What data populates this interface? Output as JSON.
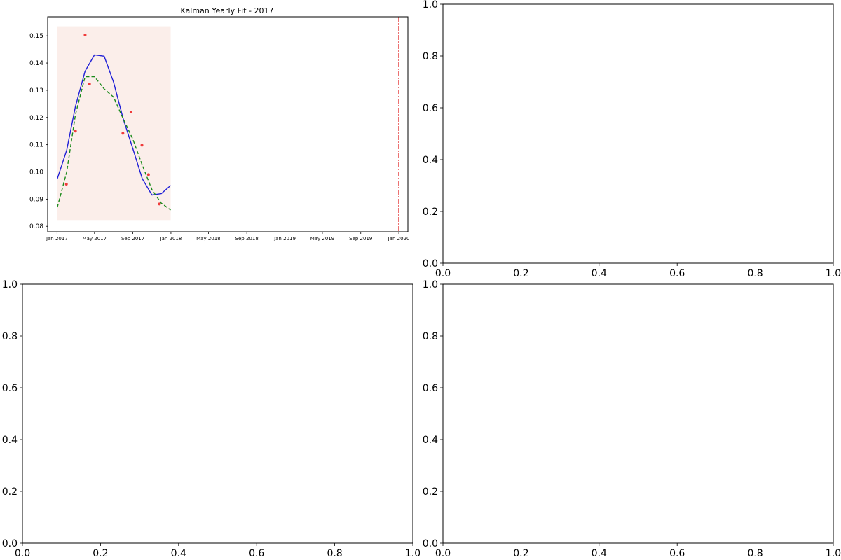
{
  "chart_data": [
    {
      "type": "line",
      "title": "Kalman Yearly Fit - 2017",
      "xlabel": "",
      "ylabel": "",
      "x_axis": "date",
      "xlim": [
        "2016-12-02",
        "2020-01-30"
      ],
      "ylim": [
        0.078,
        0.157
      ],
      "x_ticks": [
        "2017-01-01",
        "2017-05-01",
        "2017-09-01",
        "2018-01-01",
        "2018-05-01",
        "2018-09-01",
        "2019-01-01",
        "2019-05-01",
        "2019-09-01",
        "2020-01-01"
      ],
      "x_tick_labels": [
        "Jan 2017",
        "May 2017",
        "Sep 2017",
        "Jan 2018",
        "May 2018",
        "Sep 2018",
        "Jan 2019",
        "May 2019",
        "Sep 2019",
        "Jan 2020"
      ],
      "y_ticks": [
        0.08,
        0.09,
        0.1,
        0.11,
        0.12,
        0.13,
        0.14,
        0.15
      ],
      "y_tick_labels": [
        "0.08",
        "0.09",
        "0.10",
        "0.11",
        "0.12",
        "0.13",
        "0.14",
        "0.15"
      ],
      "grid": false,
      "colors": {
        "fit_line": "#1f1fd6",
        "kalman_line": "#1a8a1a",
        "observations": "#ef3b3b",
        "span": "#fbeeea",
        "vline": "#e01b1b"
      },
      "shaded_span": {
        "x": [
          "2017-01-02",
          "2017-12-31"
        ],
        "y": [
          0.0823,
          0.1535
        ]
      },
      "vertical_line": {
        "x": "2020-01-01",
        "style": "dash-dot"
      },
      "series": [
        {
          "kind": "line",
          "style": "solid",
          "color": "#1f1fd6",
          "x": [
            "2017-01-02",
            "2017-02-01",
            "2017-03-01",
            "2017-04-01",
            "2017-05-01",
            "2017-06-01",
            "2017-07-01",
            "2017-08-01",
            "2017-09-01",
            "2017-10-01",
            "2017-11-01",
            "2017-12-01",
            "2017-12-31"
          ],
          "y": [
            0.0975,
            0.108,
            0.124,
            0.137,
            0.143,
            0.1425,
            0.133,
            0.1195,
            0.1085,
            0.0975,
            0.0915,
            0.092,
            0.095
          ]
        },
        {
          "kind": "line",
          "style": "dashed",
          "color": "#1a8a1a",
          "x": [
            "2017-01-02",
            "2017-02-01",
            "2017-03-01",
            "2017-04-01",
            "2017-05-01",
            "2017-06-01",
            "2017-07-01",
            "2017-08-01",
            "2017-09-01",
            "2017-10-01",
            "2017-11-01",
            "2017-12-01",
            "2017-12-31"
          ],
          "y": [
            0.087,
            0.1,
            0.121,
            0.135,
            0.135,
            0.1305,
            0.1275,
            0.1195,
            0.112,
            0.1025,
            0.0935,
            0.0885,
            0.086
          ]
        },
        {
          "kind": "scatter",
          "color": "#ef3b3b",
          "x": [
            "2017-01-31",
            "2017-03-01",
            "2017-04-01",
            "2017-04-15",
            "2017-07-31",
            "2017-08-26",
            "2017-09-30",
            "2017-10-21",
            "2017-11-25"
          ],
          "y": [
            0.0955,
            0.115,
            0.1503,
            0.1323,
            0.1142,
            0.122,
            0.1098,
            0.099,
            0.0882
          ]
        }
      ]
    },
    {
      "type": "line",
      "title": "",
      "xlim": [
        0,
        1
      ],
      "ylim": [
        0,
        1
      ],
      "x_ticks": [
        0,
        0.2,
        0.4,
        0.6,
        0.8,
        1.0
      ],
      "x_tick_labels": [
        "0.0",
        "0.2",
        "0.4",
        "0.6",
        "0.8",
        "1.0"
      ],
      "y_ticks": [
        0,
        0.2,
        0.4,
        0.6,
        0.8,
        1.0
      ],
      "y_tick_labels": [
        "0.0",
        "0.2",
        "0.4",
        "0.6",
        "0.8",
        "1.0"
      ],
      "series": []
    },
    {
      "type": "line",
      "title": "",
      "xlim": [
        0,
        1
      ],
      "ylim": [
        0,
        1
      ],
      "x_ticks": [
        0,
        0.2,
        0.4,
        0.6,
        0.8,
        1.0
      ],
      "x_tick_labels": [
        "0.0",
        "0.2",
        "0.4",
        "0.6",
        "0.8",
        "1.0"
      ],
      "y_ticks": [
        0,
        0.2,
        0.4,
        0.6,
        0.8,
        1.0
      ],
      "y_tick_labels": [
        "0.0",
        "0.2",
        "0.4",
        "0.6",
        "0.8",
        "1.0"
      ],
      "series": []
    },
    {
      "type": "line",
      "title": "",
      "xlim": [
        0,
        1
      ],
      "ylim": [
        0,
        1
      ],
      "x_ticks": [
        0,
        0.2,
        0.4,
        0.6,
        0.8,
        1.0
      ],
      "x_tick_labels": [
        "0.0",
        "0.2",
        "0.4",
        "0.6",
        "0.8",
        "1.0"
      ],
      "y_ticks": [
        0,
        0.2,
        0.4,
        0.6,
        0.8,
        1.0
      ],
      "y_tick_labels": [
        "0.0",
        "0.2",
        "0.4",
        "0.6",
        "0.8",
        "1.0"
      ],
      "series": []
    }
  ]
}
